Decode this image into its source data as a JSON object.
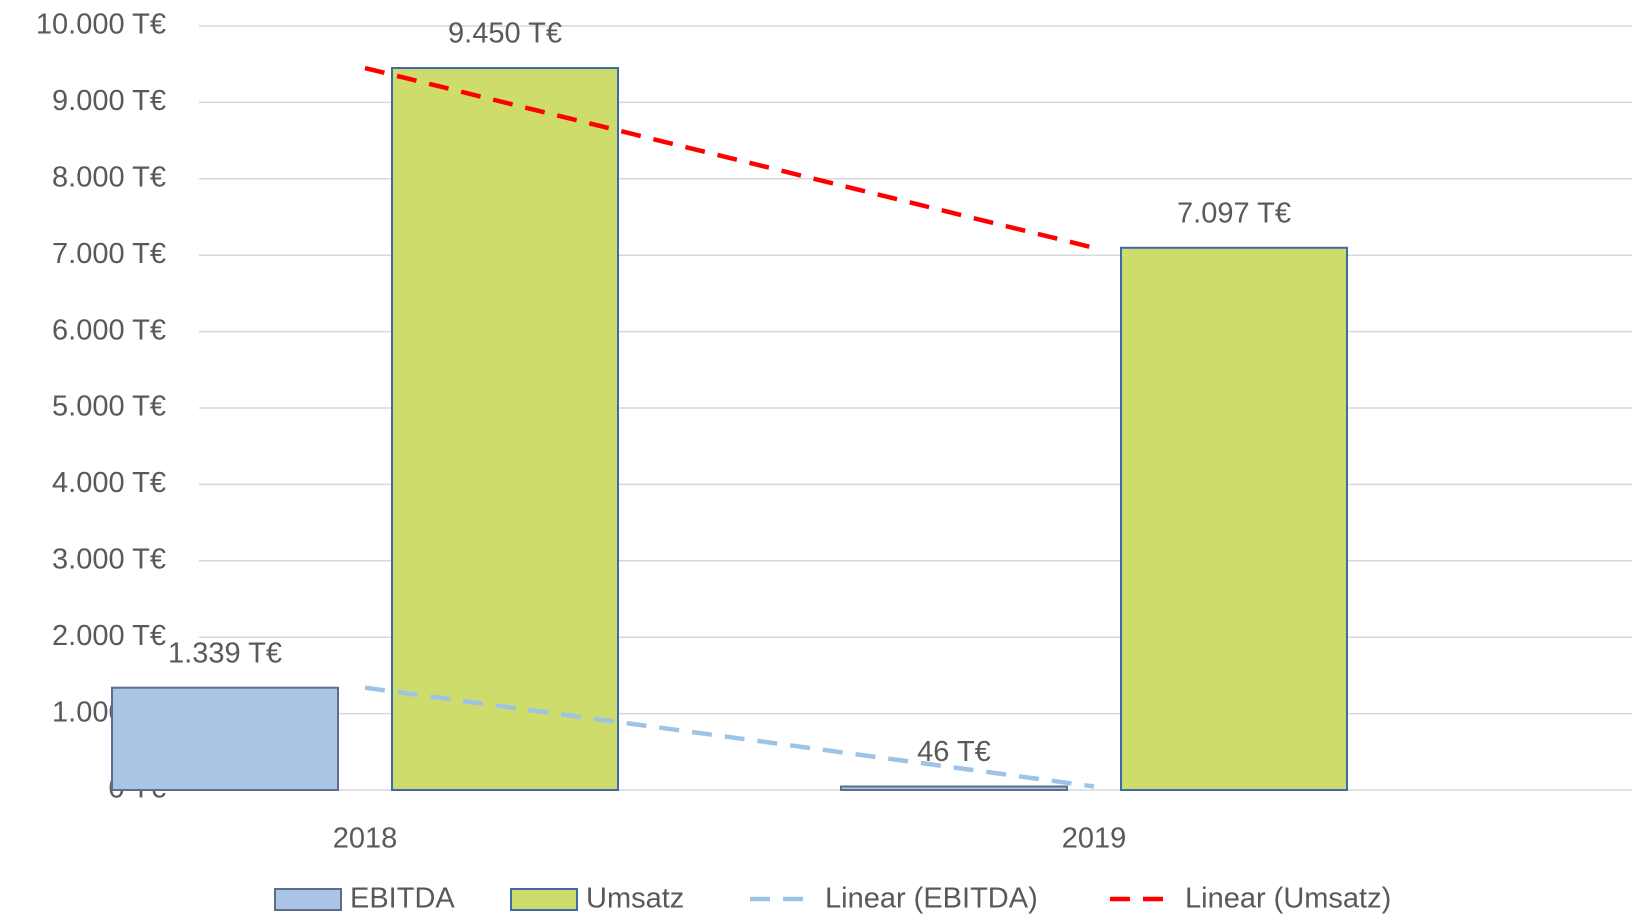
{
  "chart_data": {
    "type": "bar",
    "categories": [
      "2018",
      "2019"
    ],
    "series": [
      {
        "name": "EBITDA",
        "color": "#a9c4e4",
        "stroke": "#5b6f8c",
        "values": [
          1339,
          46
        ],
        "value_labels": [
          "1.339 T€",
          "46 T€"
        ],
        "trendline": {
          "name": "Linear (EBITDA)",
          "color": "#9dc3e6"
        }
      },
      {
        "name": "Umsatz",
        "color": "#cddc6a",
        "stroke": "#3f6aa8",
        "values": [
          9450,
          7097
        ],
        "value_labels": [
          "9.450 T€",
          "7.097 T€"
        ],
        "trendline": {
          "name": "Linear (Umsatz)",
          "color": "#ff0000"
        }
      }
    ],
    "ylim": [
      0,
      10000
    ],
    "yticks": [
      {
        "value": 0,
        "label": "0 T€"
      },
      {
        "value": 1000,
        "label": "1.000 T€"
      },
      {
        "value": 2000,
        "label": "2.000 T€"
      },
      {
        "value": 3000,
        "label": "3.000 T€"
      },
      {
        "value": 4000,
        "label": "4.000 T€"
      },
      {
        "value": 5000,
        "label": "5.000 T€"
      },
      {
        "value": 6000,
        "label": "6.000 T€"
      },
      {
        "value": 7000,
        "label": "7.000 T€"
      },
      {
        "value": 8000,
        "label": "8.000 T€"
      },
      {
        "value": 9000,
        "label": "9.000 T€"
      },
      {
        "value": 10000,
        "label": "10.000 T€"
      }
    ],
    "grid": true,
    "legend": "bottom"
  }
}
